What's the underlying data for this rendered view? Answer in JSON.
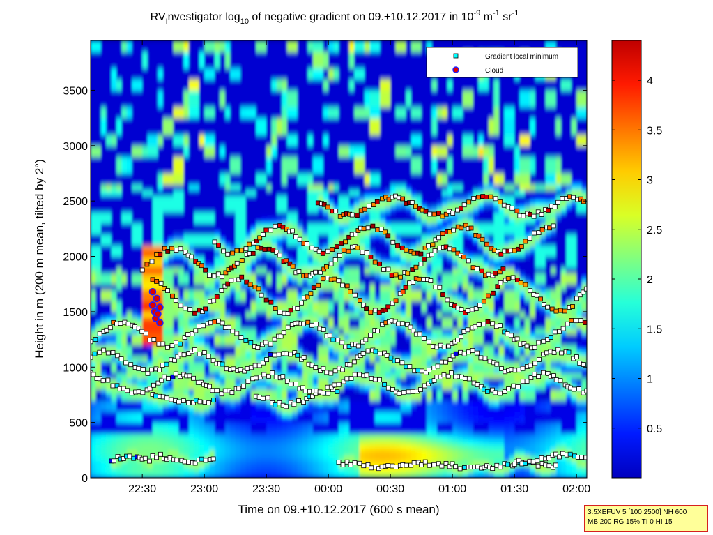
{
  "chart_data": {
    "type": "heatmap",
    "title": {
      "main": "RV",
      "sub1": "I",
      "mid1": "nvestigator log",
      "sub2": "10",
      "mid2": " of negative gradient on 09.+10.12.2017 in 10",
      "sup1": "-9",
      "mid3": " m",
      "sup2": "-1",
      "mid4": " sr",
      "sup3": "-1"
    },
    "xlabel": "Time on 09.+10.12.2017 (600 s mean)",
    "ylabel": "Height in m (200 m mean, tilted by 2°)",
    "x_range": [
      "22:05",
      "02:05"
    ],
    "x_ticks": [
      {
        "label": "22:30",
        "min": 25
      },
      {
        "label": "23:00",
        "min": 55
      },
      {
        "label": "23:30",
        "min": 85
      },
      {
        "label": "00:00",
        "min": 115
      },
      {
        "label": "00:30",
        "min": 145
      },
      {
        "label": "01:00",
        "min": 175
      },
      {
        "label": "01:30",
        "min": 205
      },
      {
        "label": "02:00",
        "min": 235
      }
    ],
    "y_range": [
      0,
      3950
    ],
    "y_ticks": [
      0,
      500,
      1000,
      1500,
      2000,
      2500,
      3000,
      3500
    ],
    "colorbar": {
      "range": [
        0,
        4.4
      ],
      "ticks": [
        "0.5",
        "1",
        "1.5",
        "2",
        "2.5",
        "3",
        "3.5",
        "4"
      ],
      "colormap": "jet"
    },
    "legend": {
      "position": "top-right",
      "entries": [
        "Gradient local minimum",
        "Cloud"
      ]
    },
    "layers": [
      {
        "h": 150,
        "start": 10,
        "end": 30,
        "noise": 30
      },
      {
        "h": 180,
        "start": 30,
        "end": 60,
        "noise": 30
      },
      {
        "h": 110,
        "start": 120,
        "end": 225,
        "noise": 20
      },
      {
        "h": 170,
        "start": 205,
        "end": 240,
        "noise": 30
      },
      {
        "h": 720,
        "start": 30,
        "end": 60,
        "noise": 40
      },
      {
        "h": 720,
        "start": 80,
        "end": 120,
        "noise": 60
      },
      {
        "h": 850,
        "start": 0,
        "end": 240,
        "noise": 80
      },
      {
        "h": 1050,
        "start": 0,
        "end": 240,
        "noise": 90
      },
      {
        "h": 1300,
        "start": 0,
        "end": 240,
        "noise": 110
      },
      {
        "h": 1650,
        "start": 30,
        "end": 240,
        "noise": 150
      },
      {
        "h": 1950,
        "start": 25,
        "end": 200,
        "noise": 120
      },
      {
        "h": 2150,
        "start": 60,
        "end": 225,
        "noise": 120
      },
      {
        "h": 2450,
        "start": 110,
        "end": 240,
        "noise": 80
      }
    ],
    "clouds": [
      {
        "t": 30,
        "h": 1680
      },
      {
        "t": 30,
        "h": 1560
      },
      {
        "t": 31,
        "h": 1500
      },
      {
        "t": 31.5,
        "h": 1440
      },
      {
        "t": 32.5,
        "h": 1480
      },
      {
        "t": 33.5,
        "h": 1400
      },
      {
        "t": 33.5,
        "h": 1540
      },
      {
        "t": 32,
        "h": 1620
      }
    ],
    "note": [
      "3.5XEFUV 5 [100 2500] NH 600",
      "MB 200 RG 15% TI 0 HI 15"
    ]
  }
}
